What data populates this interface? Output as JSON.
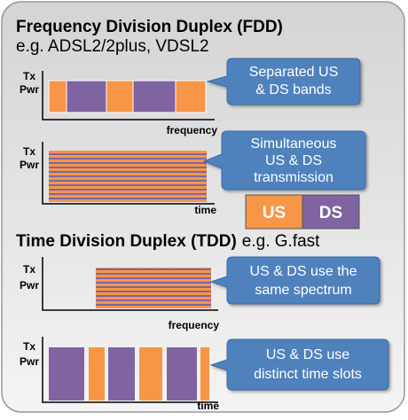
{
  "fdd": {
    "title": "Frequency Division Duplex (FDD)",
    "example": "e.g. ADSL2/2plus, VDSL2",
    "spectrum_plot": {
      "y_label_lines": [
        "Tx",
        "Pwr"
      ],
      "x_label": "frequency",
      "callout_lines": [
        "Separated US",
        "& DS bands"
      ]
    },
    "time_plot": {
      "y_label_lines": [
        "Tx",
        "Pwr"
      ],
      "x_label": "time",
      "callout_lines": [
        "Simultaneous",
        "US & DS",
        "transmission"
      ]
    }
  },
  "legend": {
    "us": "US",
    "ds": "DS"
  },
  "tdd": {
    "title": "Time Division Duplex (TDD)",
    "example": "e.g. G.fast",
    "spectrum_plot": {
      "y_label_lines": [
        "Tx",
        "Pwr"
      ],
      "x_label": "frequency",
      "callout_lines": [
        "US & DS use the",
        "same spectrum"
      ]
    },
    "time_plot": {
      "y_label_lines": [
        "Tx",
        "Pwr"
      ],
      "x_label": "time",
      "callout_lines": [
        "US & DS use",
        "distinct time slots"
      ]
    }
  }
}
